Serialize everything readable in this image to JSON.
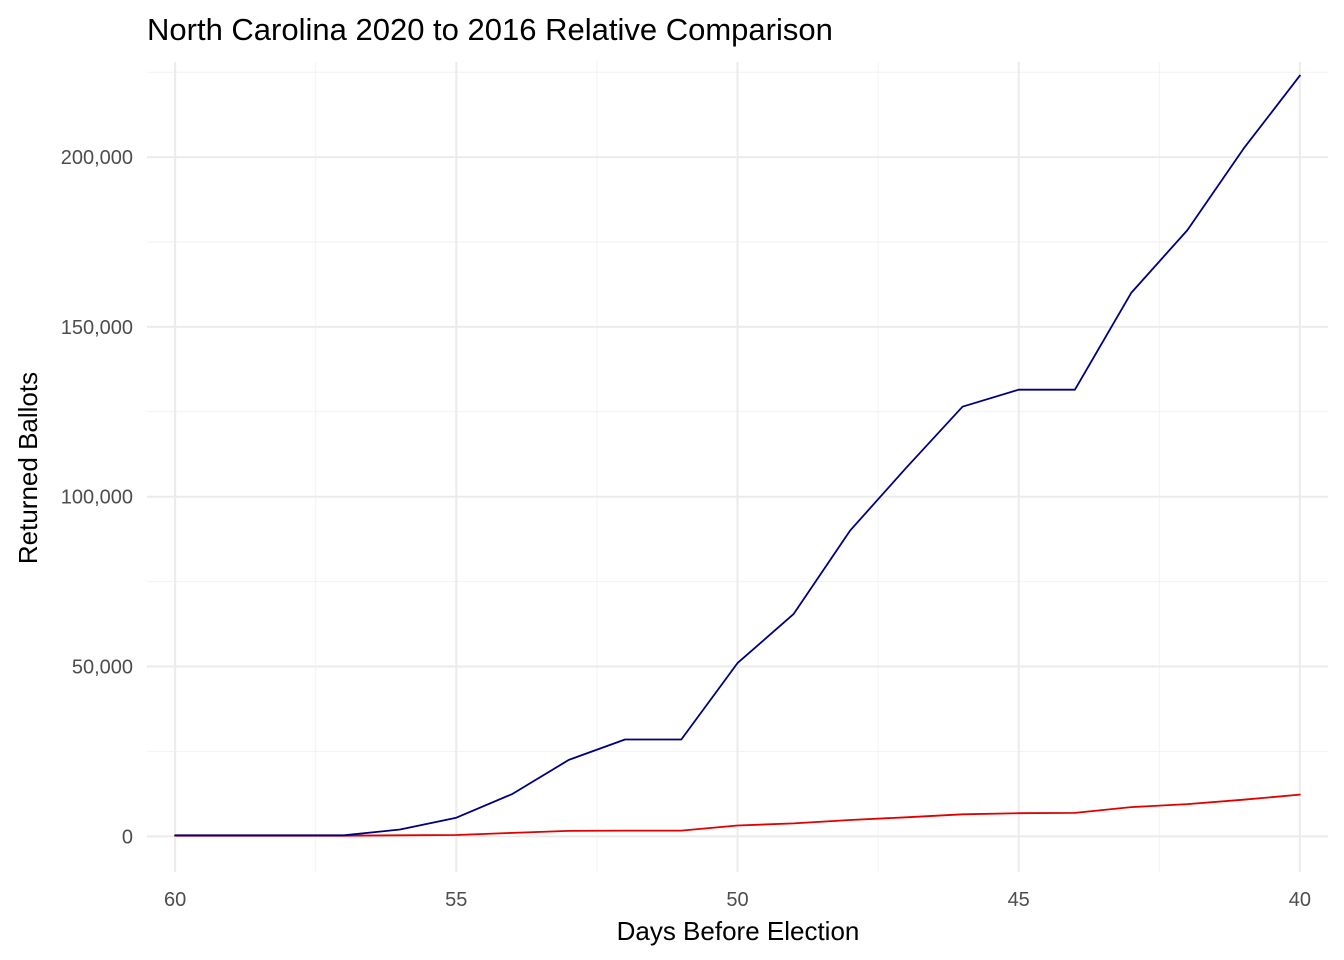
{
  "chart_data": {
    "type": "line",
    "title": "North Carolina 2020 to 2016 Relative Comparison",
    "xlabel": "Days Before Election",
    "ylabel": "Returned Ballots",
    "x_reversed": true,
    "xlim": [
      60.5,
      39.5
    ],
    "ylim": [
      -10500,
      228000
    ],
    "x_ticks": [
      60,
      55,
      50,
      45,
      40
    ],
    "x_tick_labels": [
      "60",
      "55",
      "50",
      "45",
      "40"
    ],
    "y_ticks": [
      0,
      50000,
      100000,
      150000,
      200000
    ],
    "y_tick_labels": [
      "0",
      "50,000",
      "100,000",
      "150,000",
      "200,000"
    ],
    "grid": true,
    "legend": "none",
    "x": [
      60,
      59,
      58,
      57,
      56,
      55,
      54,
      53,
      52,
      51,
      50,
      49,
      48,
      47,
      46,
      45,
      44,
      43,
      42,
      41,
      40
    ],
    "series": [
      {
        "color": "#00007f",
        "values": [
          300,
          300,
          300,
          300,
          2000,
          5500,
          12500,
          22500,
          28500,
          28500,
          51000,
          65500,
          90000,
          108500,
          126500,
          131500,
          131500,
          160000,
          178500,
          202500,
          224000
        ]
      },
      {
        "color": "#e00000",
        "values": [
          200,
          200,
          200,
          200,
          300,
          400,
          1000,
          1600,
          1700,
          1700,
          3200,
          3800,
          4800,
          5600,
          6500,
          6800,
          6900,
          8600,
          9500,
          10800,
          12300
        ]
      }
    ]
  }
}
